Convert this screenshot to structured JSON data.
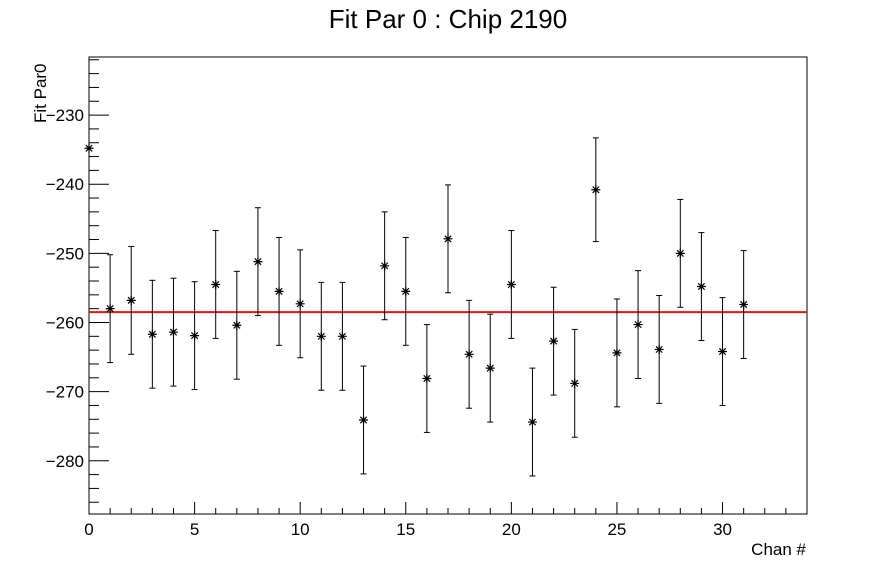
{
  "chart_data": {
    "type": "scatter",
    "title": "Fit Par 0 : Chip 2190",
    "xlabel": "Chan #",
    "ylabel": "Fit Par0",
    "xlim": [
      0,
      34
    ],
    "ylim": [
      -287.7,
      -221.6
    ],
    "x_ticks": [
      0,
      5,
      10,
      15,
      20,
      25,
      30
    ],
    "y_ticks": [
      -230,
      -240,
      -250,
      -260,
      -270,
      -280
    ],
    "grid": false,
    "marker": "asterisk",
    "points": [
      {
        "x": 0,
        "y": -234.8,
        "err": 0
      },
      {
        "x": 1,
        "y": -258.0,
        "err": 7.8
      },
      {
        "x": 2,
        "y": -256.8,
        "err": 7.8
      },
      {
        "x": 3,
        "y": -261.7,
        "err": 7.8
      },
      {
        "x": 4,
        "y": -261.4,
        "err": 7.8
      },
      {
        "x": 5,
        "y": -261.9,
        "err": 7.8
      },
      {
        "x": 6,
        "y": -254.5,
        "err": 7.8
      },
      {
        "x": 7,
        "y": -260.4,
        "err": 7.8
      },
      {
        "x": 8,
        "y": -251.2,
        "err": 7.8
      },
      {
        "x": 9,
        "y": -255.5,
        "err": 7.8
      },
      {
        "x": 10,
        "y": -257.3,
        "err": 7.8
      },
      {
        "x": 11,
        "y": -262.0,
        "err": 7.8
      },
      {
        "x": 12,
        "y": -262.0,
        "err": 7.8
      },
      {
        "x": 13,
        "y": -274.1,
        "err": 7.8
      },
      {
        "x": 14,
        "y": -251.8,
        "err": 7.8
      },
      {
        "x": 15,
        "y": -255.5,
        "err": 7.8
      },
      {
        "x": 16,
        "y": -268.1,
        "err": 7.8
      },
      {
        "x": 17,
        "y": -247.9,
        "err": 7.8
      },
      {
        "x": 18,
        "y": -264.6,
        "err": 7.8
      },
      {
        "x": 19,
        "y": -266.6,
        "err": 7.8
      },
      {
        "x": 20,
        "y": -254.5,
        "err": 7.8
      },
      {
        "x": 21,
        "y": -274.4,
        "err": 7.8
      },
      {
        "x": 22,
        "y": -262.7,
        "err": 7.8
      },
      {
        "x": 23,
        "y": -268.8,
        "err": 7.8
      },
      {
        "x": 24,
        "y": -240.8,
        "err": 7.5
      },
      {
        "x": 25,
        "y": -264.4,
        "err": 7.8
      },
      {
        "x": 26,
        "y": -260.3,
        "err": 7.8
      },
      {
        "x": 27,
        "y": -263.9,
        "err": 7.8
      },
      {
        "x": 28,
        "y": -250.0,
        "err": 7.8
      },
      {
        "x": 29,
        "y": -254.8,
        "err": 7.8
      },
      {
        "x": 30,
        "y": -264.2,
        "err": 7.8
      },
      {
        "x": 31,
        "y": -257.4,
        "err": 7.8
      }
    ],
    "fit_line": {
      "y": -258.5,
      "x_range": [
        0,
        34
      ],
      "color": "#e01515"
    },
    "colors": {
      "points": "#000000",
      "fit": "#e01515",
      "axis": "#000000"
    }
  }
}
